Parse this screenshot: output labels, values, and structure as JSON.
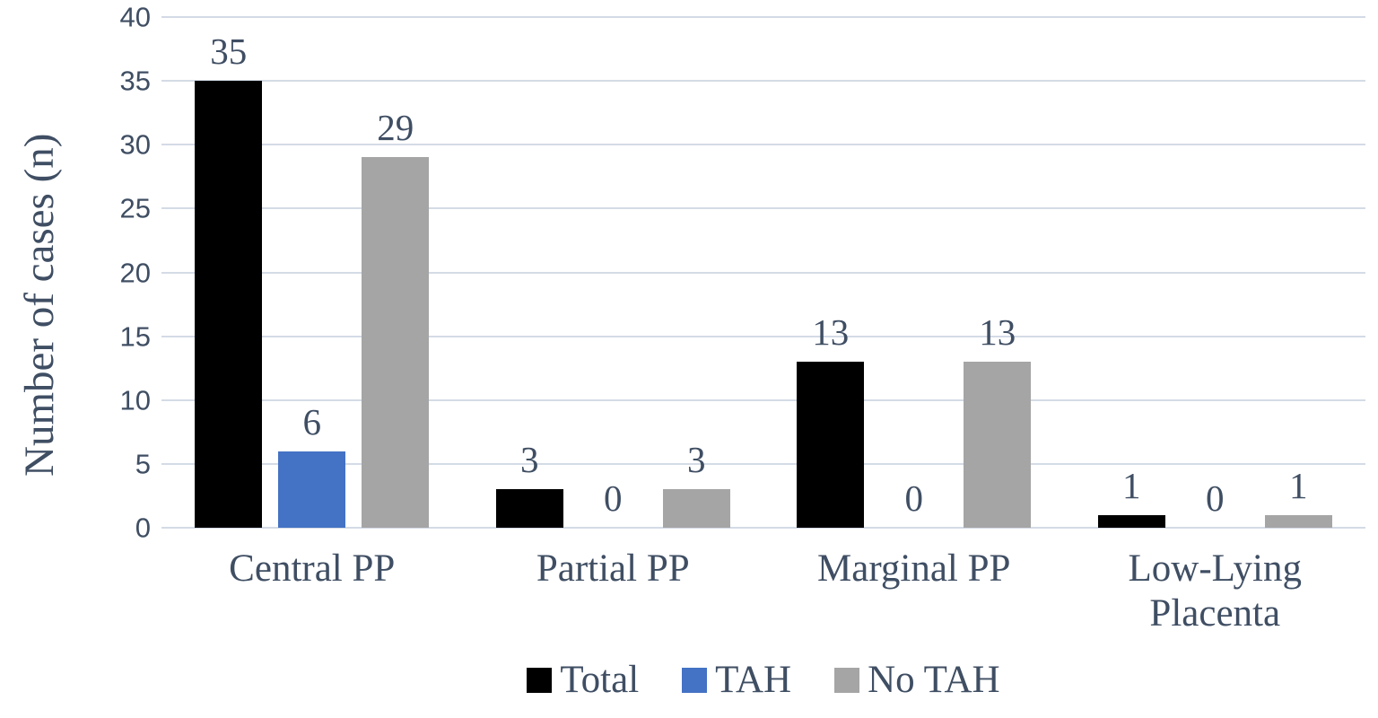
{
  "colors": {
    "text": "#3F4E63",
    "gridline": "#D4DBE6",
    "background": "#FFFFFF"
  },
  "chart_data": {
    "type": "bar",
    "title": "",
    "xlabel": "",
    "ylabel": "Number of cases (n)",
    "ylim": [
      0,
      40
    ],
    "yticks": [
      40,
      35,
      30,
      25,
      20,
      15,
      10,
      5,
      0
    ],
    "grid": true,
    "legend_position": "bottom",
    "categories": [
      "Central PP",
      "Partial PP",
      "Marginal PP",
      "Low-Lying Placenta"
    ],
    "series": [
      {
        "name": "Total",
        "color": "#000000",
        "values": [
          35,
          3,
          13,
          1
        ]
      },
      {
        "name": "TAH",
        "color": "#4472C4",
        "values": [
          6,
          0,
          0,
          0
        ]
      },
      {
        "name": "No TAH",
        "color": "#A5A5A5",
        "values": [
          29,
          3,
          13,
          1
        ]
      }
    ]
  }
}
